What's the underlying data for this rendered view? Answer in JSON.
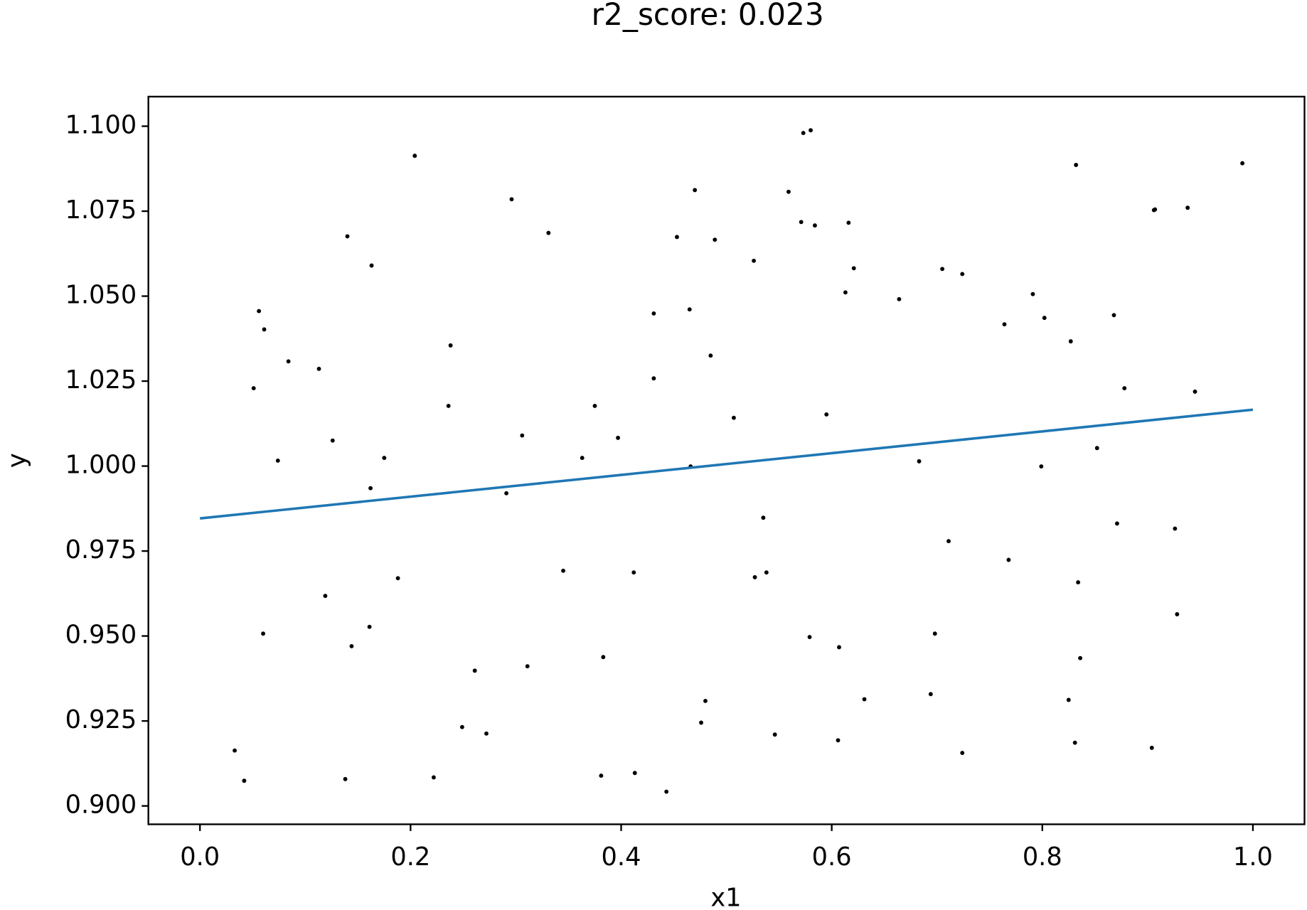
{
  "chart_data": {
    "type": "scatter",
    "title": "r2_score: 0.023",
    "x_label": "x1",
    "y_label": "y",
    "xlim": [
      -0.049,
      1.049
    ],
    "ylim": [
      0.8946,
      1.1087
    ],
    "xticks": [
      {
        "value": 0,
        "label": "0.0"
      },
      0.2,
      0.4,
      0.6,
      0.8,
      {
        "value": 1,
        "label": "1.0"
      }
    ],
    "yticks": [
      {
        "value": 0.9,
        "label": "0.900"
      },
      {
        "value": 0.925,
        "label": "0.925"
      },
      {
        "value": 0.95,
        "label": "0.950"
      },
      {
        "value": 0.975,
        "label": "0.975"
      },
      {
        "value": 1,
        "label": "1.000"
      },
      {
        "value": 1.025,
        "label": "1.025"
      },
      {
        "value": 1.05,
        "label": "1.050"
      },
      {
        "value": 1.075,
        "label": "1.075"
      },
      {
        "value": 1.1,
        "label": "1.100"
      }
    ],
    "points": {
      "color": "#000000",
      "x": [
        0.033,
        0.042,
        0.051,
        0.056,
        0.061,
        0.06,
        0.074,
        0.084,
        0.113,
        0.119,
        0.126,
        0.14,
        0.138,
        0.144,
        0.161,
        0.162,
        0.163,
        0.175,
        0.188,
        0.204,
        0.222,
        0.236,
        0.238,
        0.249,
        0.261,
        0.272,
        0.291,
        0.296,
        0.306,
        0.311,
        0.331,
        0.345,
        0.363,
        0.375,
        0.381,
        0.383,
        0.397,
        0.412,
        0.413,
        0.431,
        0.431,
        0.443,
        0.453,
        0.465,
        0.466,
        0.47,
        0.476,
        0.48,
        0.485,
        0.489,
        0.507,
        0.526,
        0.527,
        0.535,
        0.538,
        0.546,
        0.559,
        0.571,
        0.573,
        0.579,
        0.58,
        0.584,
        0.595,
        0.606,
        0.607,
        0.613,
        0.616,
        0.621,
        0.631,
        0.664,
        0.683,
        0.694,
        0.698,
        0.705,
        0.711,
        0.724,
        0.724,
        0.764,
        0.768,
        0.791,
        0.799,
        0.802,
        0.825,
        0.827,
        0.831,
        0.832,
        0.834,
        0.836,
        0.852,
        0.868,
        0.871,
        0.878,
        0.904,
        0.906,
        0.907,
        0.926,
        0.928,
        0.938,
        0.945,
        0.99
      ],
      "y": [
        0.9163,
        0.9074,
        1.0229,
        1.0456,
        1.0402,
        0.9507,
        1.0016,
        1.0308,
        1.0286,
        0.9618,
        1.0075,
        1.0676,
        0.9079,
        0.947,
        0.9527,
        0.9935,
        1.059,
        1.0024,
        0.967,
        1.0913,
        0.9084,
        1.0177,
        1.0355,
        0.9232,
        0.9398,
        0.9213,
        0.992,
        1.0785,
        1.009,
        0.9411,
        1.0686,
        0.9692,
        1.0024,
        1.0177,
        0.9089,
        0.9438,
        1.0083,
        0.9687,
        0.9097,
        1.0449,
        1.0258,
        0.9042,
        1.0674,
        1.0461,
        0.9999,
        1.0812,
        0.9245,
        0.9309,
        1.0325,
        1.0666,
        1.0142,
        1.0604,
        0.9673,
        0.9848,
        0.9687,
        0.921,
        1.0807,
        1.0718,
        1.098,
        0.9497,
        1.0988,
        1.0708,
        1.0152,
        0.9193,
        0.9467,
        1.0511,
        1.0716,
        1.0582,
        0.9314,
        1.0491,
        1.0014,
        0.9329,
        0.9507,
        1.058,
        0.9779,
        1.0565,
        0.9156,
        1.0417,
        0.9724,
        1.0506,
        0.9999,
        1.0436,
        0.9312,
        1.0367,
        0.9186,
        1.0886,
        0.9658,
        0.9435,
        1.0053,
        1.0444,
        0.9831,
        1.0229,
        0.9171,
        1.0753,
        1.0755,
        0.9816,
        0.9564,
        1.076,
        1.0219,
        1.0891
      ]
    },
    "line": {
      "color": "#1f77b4",
      "x": [
        0,
        1
      ],
      "y": [
        0.9846,
        1.0166
      ]
    }
  }
}
